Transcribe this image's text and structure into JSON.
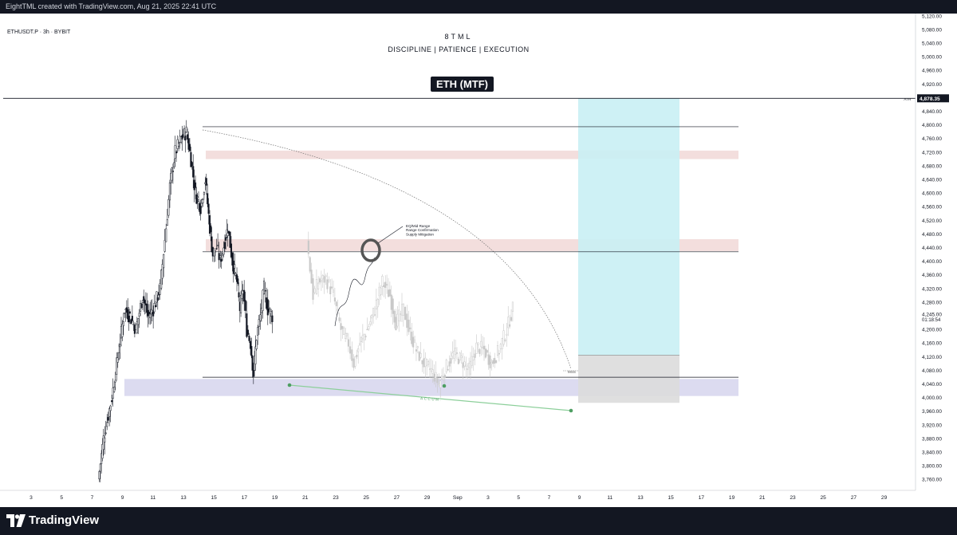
{
  "header": {
    "attribution": "EightTML created with TradingView.com, Aug 21, 2025 22:41 UTC"
  },
  "footer": {
    "logo_icon": "tradingview-logo-icon",
    "logo_text": "TradingView"
  },
  "chart_data": {
    "type": "candlestick",
    "symbol_line": "ETHUSDT.P · 3h · BYBIT",
    "brand": "8TML",
    "tagline": "DISCIPLINE | PATIENCE | EXECUTION",
    "title_badge": "ETH (MTF)",
    "x_tick_labels": [
      "3",
      "5",
      "7",
      "9",
      "11",
      "13",
      "15",
      "17",
      "19",
      "21",
      "23",
      "25",
      "27",
      "29",
      "Sep",
      "3",
      "5",
      "7",
      "9",
      "11",
      "13",
      "15",
      "17",
      "19",
      "21",
      "23",
      "25",
      "27",
      "29"
    ],
    "y_tick_labels": [
      "5,120.00",
      "5,080.00",
      "5,040.00",
      "5,000.00",
      "4,960.00",
      "4,920.00",
      "4,840.00",
      "4,800.00",
      "4,760.00",
      "4,720.00",
      "4,680.00",
      "4,640.00",
      "4,600.00",
      "4,560.00",
      "4,520.00",
      "4,480.00",
      "4,440.00",
      "4,400.00",
      "4,360.00",
      "4,320.00",
      "4,280.00",
      "4,245.00",
      "4,200.00",
      "4,160.00",
      "4,120.00",
      "4,080.00",
      "4,040.00",
      "4,000.00",
      "3,960.00",
      "3,920.00",
      "3,880.00",
      "3,840.00",
      "3,800.00",
      "3,760.00"
    ],
    "y_range": [
      3750,
      5125
    ],
    "price_line": {
      "label": "ATH",
      "value": 4878.35,
      "value_label": "4,878.35"
    },
    "countdown_label": "01:18:54",
    "horizontal_levels": [
      4795,
      4428,
      4060
    ],
    "supply_zones": [
      {
        "from": 4700,
        "to": 4725,
        "color": "#f3dedd"
      },
      {
        "from": 4430,
        "to": 4465,
        "color": "#f3dedd"
      }
    ],
    "demand_zone": {
      "from": 4005,
      "to": 4055,
      "color": "#dcdbf0"
    },
    "annotations": {
      "eq_text": [
        "EQ/Mid Range",
        "Range Confirmation",
        "Supply Mitigation"
      ],
      "accum_text": "ACCUM.",
      "mss_text": "MSS"
    },
    "projection_box": {
      "entry": 4125,
      "target": 4878,
      "stop": 3985,
      "profit_color": "#c9f0f4",
      "loss_color": "#dcdcdc"
    },
    "colors": {
      "candle": "#131722",
      "ghost": "#c8c8c8",
      "accum": "#8ccf9a",
      "axis_text": "#131722"
    }
  }
}
